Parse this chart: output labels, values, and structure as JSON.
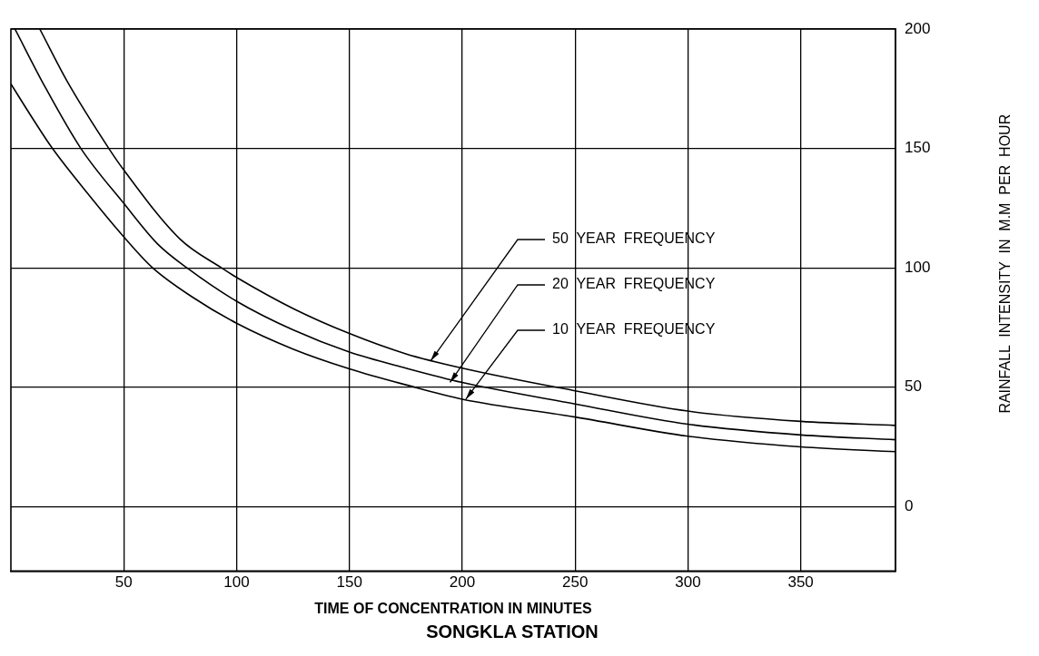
{
  "chart_data": {
    "type": "line",
    "title": "SONGKLA STATION",
    "xlabel": "TIME OF CONCENTRATION IN MINUTES",
    "ylabel": "RAINFALL  INTENSITY  IN  M.M  PER  HOUR",
    "xlim": [
      0,
      392
    ],
    "ylim": [
      -27,
      200
    ],
    "xticks": [
      50,
      100,
      150,
      200,
      250,
      300,
      350
    ],
    "yticks": [
      0,
      50,
      100,
      150,
      200
    ],
    "grid": true,
    "legend": false,
    "marker": "none",
    "line_style": "solid",
    "series": [
      {
        "color": "#000000",
        "x": [
          12.8,
          25,
          43.4,
          50,
          75,
          93.3,
          100,
          125,
          150,
          175,
          200,
          250,
          300,
          350,
          392
        ],
        "values": [
          200,
          178,
          150,
          141,
          112,
          100,
          96,
          83,
          72.5,
          64,
          58,
          48.5,
          40,
          35.7,
          34
        ]
      },
      {
        "color": "#000000",
        "x": [
          1.8,
          15,
          31,
          50,
          65,
          78,
          100,
          125,
          150,
          175,
          200,
          250,
          300,
          350,
          392
        ],
        "values": [
          200,
          176,
          150,
          127,
          110,
          100,
          86,
          74,
          64.7,
          58,
          52,
          43,
          34.5,
          30,
          28
        ]
      },
      {
        "color": "#000000",
        "x": [
          0,
          10,
          18.4,
          35,
          50,
          62.8,
          80,
          100,
          125,
          150,
          175,
          200,
          250,
          300,
          350,
          392
        ],
        "values": [
          177,
          162,
          150,
          130,
          113,
          100,
          88,
          76.8,
          66,
          57.7,
          51,
          45,
          37.5,
          29.5,
          25,
          23
        ]
      }
    ],
    "annotations": [
      {
        "text": "50  YEAR  FREQUENCY",
        "x": 186,
        "y": 61
      },
      {
        "text": "20  YEAR  FREQUENCY",
        "x": 194.6,
        "y": 52
      },
      {
        "text": "10  YEAR  FREQUENCY",
        "x": 201.6,
        "y": 45
      }
    ]
  }
}
